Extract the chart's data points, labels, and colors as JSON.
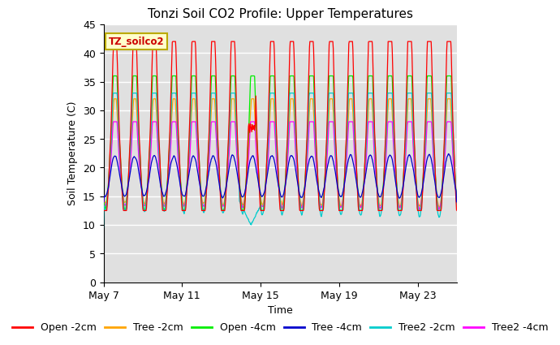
{
  "title": "Tonzi Soil CO2 Profile: Upper Temperatures",
  "xlabel": "Time",
  "ylabel": "Soil Temperature (C)",
  "ylim": [
    0,
    45
  ],
  "yticks": [
    0,
    5,
    10,
    15,
    20,
    25,
    30,
    35,
    40,
    45
  ],
  "xtick_days": [
    0,
    4,
    8,
    12,
    16
  ],
  "xtick_labels": [
    "May 7",
    "May 11",
    "May 15",
    "May 19",
    "May 23"
  ],
  "legend_label": "TZ_soilco2",
  "series_colors": [
    "#ff0000",
    "#ffa500",
    "#00ee00",
    "#0000cc",
    "#00cccc",
    "#ff00ff"
  ],
  "series_names": [
    "Open -2cm",
    "Tree -2cm",
    "Open -4cm",
    "Tree -4cm",
    "Tree2 -2cm",
    "Tree2 -4cm"
  ],
  "background_inner": "#e0e0e0",
  "background_outer": "#ffffff",
  "grid_color": "#ffffff",
  "title_fontsize": 11,
  "axis_label_fontsize": 9,
  "tick_fontsize": 9,
  "legend_fontsize": 9,
  "n_days": 18,
  "pts_per_day": 48
}
